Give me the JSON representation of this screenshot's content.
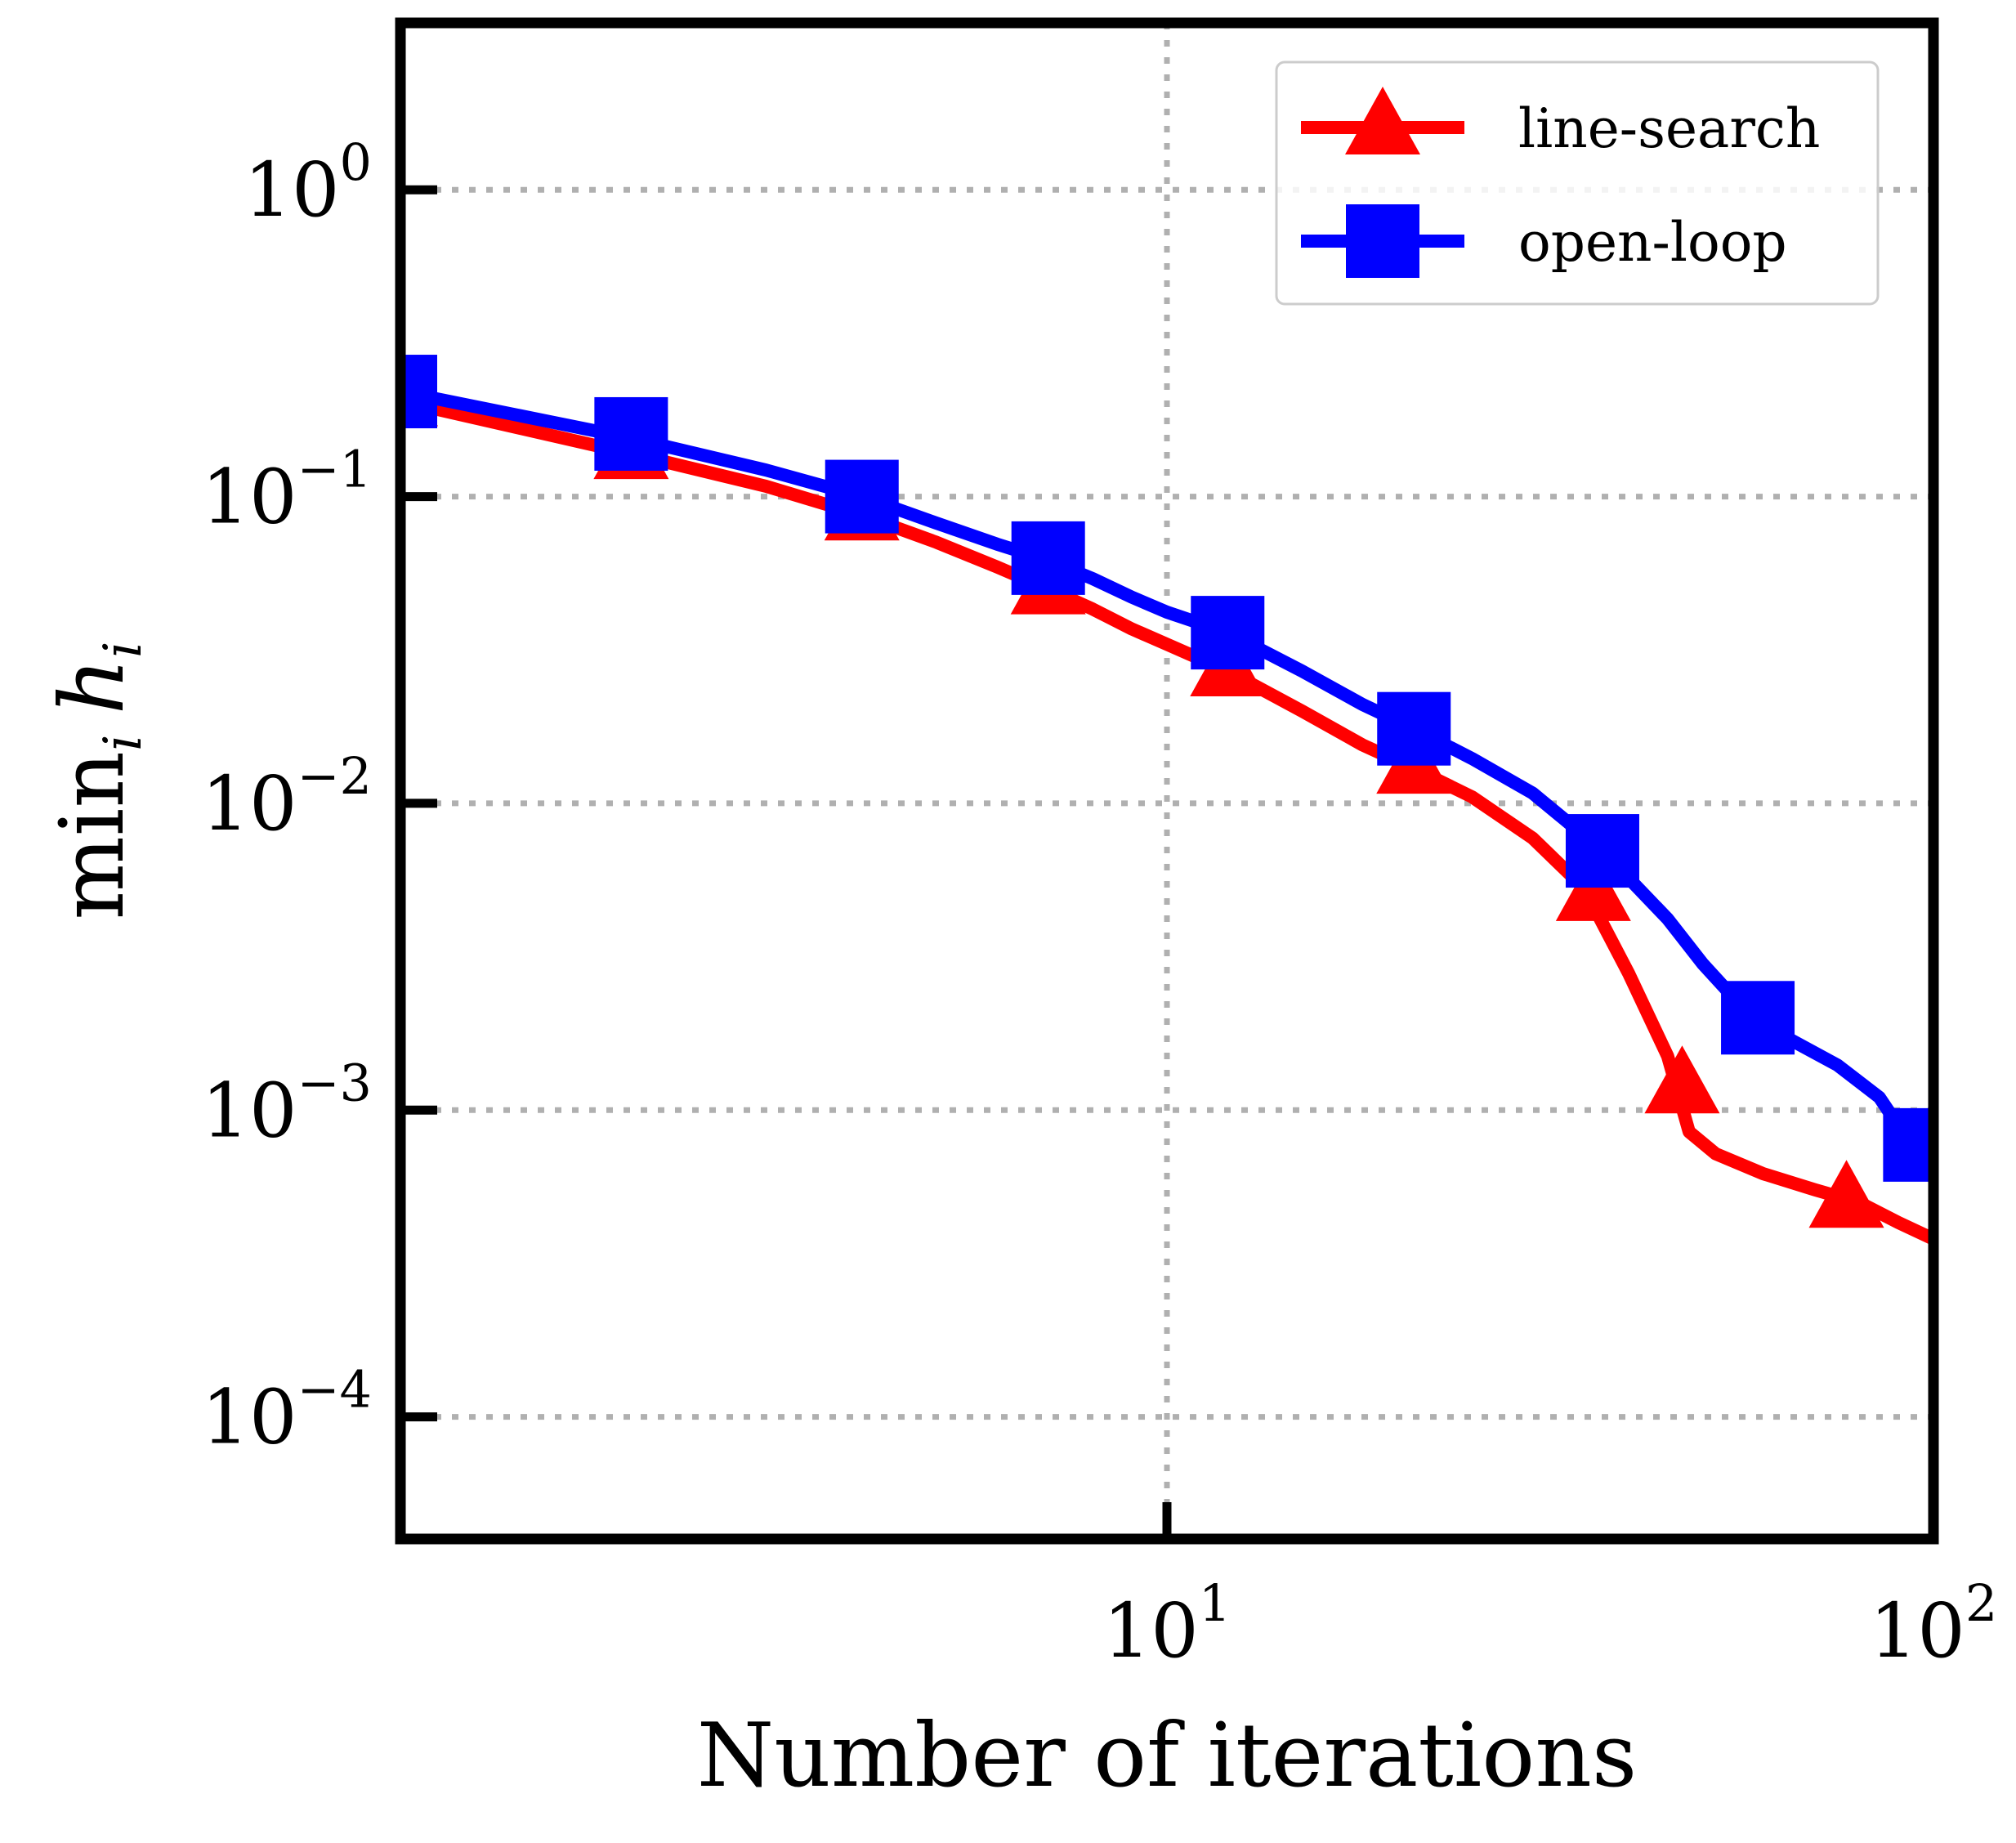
{
  "chart_data": {
    "type": "line",
    "title": "",
    "xlabel": "Number of iterations",
    "ylabel_main": "min",
    "ylabel_sub": "i",
    "ylabel_var": "h",
    "ylabel_var_sub": "i",
    "x_scale": "log",
    "y_scale": "log",
    "xlim": [
      1,
      100
    ],
    "ylim": [
      4e-05,
      3.5
    ],
    "grid": true,
    "legend_position": "top-right",
    "x_ticks": [
      {
        "value": 10,
        "base": "10",
        "exp": "1"
      },
      {
        "value": 100,
        "base": "10",
        "exp": "2"
      }
    ],
    "y_ticks": [
      {
        "value": 1,
        "base": "10",
        "exp": "0"
      },
      {
        "value": 0.1,
        "base": "10",
        "exp": "−1"
      },
      {
        "value": 0.01,
        "base": "10",
        "exp": "−2"
      },
      {
        "value": 0.001,
        "base": "10",
        "exp": "−3"
      },
      {
        "value": 0.0001,
        "base": "10",
        "exp": "−4"
      }
    ],
    "series": [
      {
        "name": "line-search",
        "color": "#ff0000",
        "marker": "triangle",
        "line": [
          [
            1,
            0.205
          ],
          [
            2,
            0.138
          ],
          [
            3,
            0.108
          ],
          [
            4,
            0.087
          ],
          [
            5,
            0.071
          ],
          [
            6,
            0.059
          ],
          [
            7,
            0.05
          ],
          [
            8,
            0.043
          ],
          [
            9,
            0.037
          ],
          [
            10,
            0.033
          ],
          [
            12,
            0.027
          ],
          [
            15,
            0.02
          ],
          [
            18,
            0.0155
          ],
          [
            21,
            0.013
          ],
          [
            25,
            0.0105
          ],
          [
            30,
            0.0077
          ],
          [
            35,
            0.0053
          ],
          [
            40,
            0.0028
          ],
          [
            45,
            0.0015
          ],
          [
            48,
            0.00085
          ],
          [
            52,
            0.00072
          ],
          [
            60,
            0.00062
          ],
          [
            70,
            0.00055
          ],
          [
            80,
            0.0005
          ],
          [
            90,
            0.00043
          ],
          [
            100,
            0.00038
          ]
        ],
        "markers": [
          [
            1,
            0.205
          ],
          [
            2,
            0.138
          ],
          [
            4,
            0.087
          ],
          [
            7,
            0.05
          ],
          [
            12,
            0.027
          ],
          [
            21,
            0.013
          ],
          [
            36,
            0.005
          ],
          [
            47,
            0.00118
          ],
          [
            77,
            0.0005
          ]
        ]
      },
      {
        "name": "open-loop",
        "color": "#0000ff",
        "marker": "square",
        "line": [
          [
            1,
            0.22
          ],
          [
            2,
            0.155
          ],
          [
            3,
            0.122
          ],
          [
            4,
            0.1
          ],
          [
            5,
            0.082
          ],
          [
            6,
            0.07
          ],
          [
            7,
            0.062
          ],
          [
            8,
            0.054
          ],
          [
            9,
            0.047
          ],
          [
            10,
            0.042
          ],
          [
            12,
            0.036
          ],
          [
            15,
            0.027
          ],
          [
            18,
            0.021
          ],
          [
            21,
            0.0175
          ],
          [
            25,
            0.014
          ],
          [
            30,
            0.0108
          ],
          [
            37,
            0.007
          ],
          [
            45,
            0.0042
          ],
          [
            50,
            0.003
          ],
          [
            58,
            0.002
          ],
          [
            65,
            0.0017
          ],
          [
            75,
            0.0014
          ],
          [
            85,
            0.0011
          ],
          [
            92,
            0.00082
          ],
          [
            100,
            0.00072
          ]
        ],
        "markers": [
          [
            1,
            0.22
          ],
          [
            2,
            0.16
          ],
          [
            4,
            0.1
          ],
          [
            7,
            0.063
          ],
          [
            12,
            0.036
          ],
          [
            21,
            0.0175
          ],
          [
            37,
            0.007
          ],
          [
            59,
            0.002
          ],
          [
            96,
            0.00077
          ]
        ]
      }
    ]
  }
}
